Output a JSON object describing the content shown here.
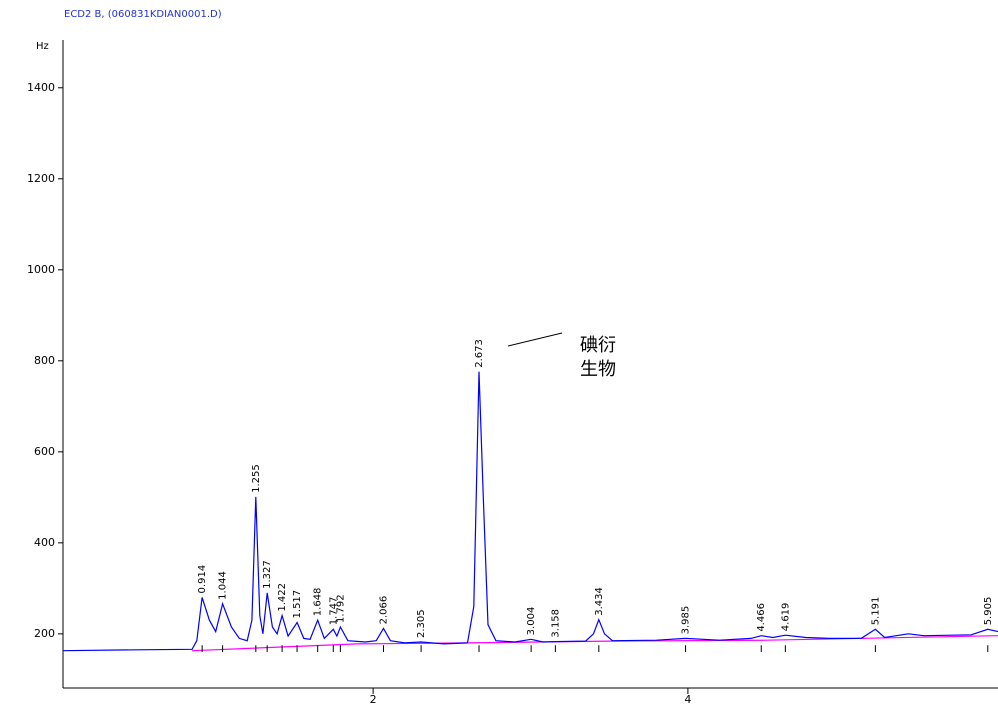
{
  "chart_data": {
    "type": "line",
    "title": "ECD2 B, (060831KDIAN0001.D)",
    "y_unit": "Hz",
    "xlim": [
      0.03,
      5.97
    ],
    "ylim": [
      81,
      1505
    ],
    "xticks": [
      2,
      4
    ],
    "yticks": [
      200,
      400,
      600,
      800,
      1000,
      1200,
      1400
    ],
    "series": [
      {
        "color": "#0000ff",
        "x": [
          0.03,
          0.5,
          0.85,
          0.88,
          0.914,
          0.96,
          1.0,
          1.044,
          1.1,
          1.15,
          1.2,
          1.23,
          1.255,
          1.28,
          1.3,
          1.327,
          1.36,
          1.39,
          1.422,
          1.46,
          1.517,
          1.56,
          1.6,
          1.648,
          1.69,
          1.747,
          1.77,
          1.792,
          1.84,
          1.95,
          2.02,
          2.066,
          2.11,
          2.2,
          2.305,
          2.45,
          2.6,
          2.64,
          2.673,
          2.7,
          2.73,
          2.78,
          2.9,
          3.004,
          3.08,
          3.158,
          3.35,
          3.4,
          3.434,
          3.47,
          3.52,
          3.8,
          3.985,
          4.2,
          4.4,
          4.466,
          4.54,
          4.619,
          4.75,
          4.9,
          5.1,
          5.191,
          5.25,
          5.4,
          5.5,
          5.8,
          5.905,
          5.97
        ],
        "values": [
          163,
          165,
          166,
          185,
          280,
          230,
          205,
          266,
          215,
          190,
          185,
          230,
          501,
          240,
          200,
          290,
          215,
          200,
          240,
          195,
          225,
          190,
          188,
          230,
          190,
          210,
          195,
          215,
          185,
          182,
          185,
          212,
          185,
          180,
          182,
          178,
          180,
          260,
          776,
          500,
          220,
          185,
          182,
          188,
          182,
          183,
          184,
          200,
          231,
          200,
          185,
          186,
          190,
          186,
          190,
          196,
          192,
          197,
          192,
          190,
          190,
          210,
          192,
          200,
          196,
          198,
          210,
          205
        ]
      },
      {
        "color": "#ff00ff",
        "x": [
          0.85,
          1.9,
          2.6,
          3.5,
          4.5,
          5.97
        ],
        "values": [
          163,
          178,
          180,
          184,
          186,
          196
        ]
      }
    ],
    "peaks": {
      "times": [
        0.914,
        1.044,
        1.255,
        1.327,
        1.422,
        1.517,
        1.648,
        1.747,
        1.792,
        2.066,
        2.305,
        2.673,
        3.004,
        3.158,
        3.434,
        3.985,
        4.466,
        4.619,
        5.191,
        5.905
      ],
      "heights": [
        280,
        266,
        501,
        290,
        240,
        225,
        230,
        210,
        215,
        212,
        182,
        776,
        188,
        183,
        231,
        190,
        196,
        197,
        210,
        210
      ]
    },
    "annotation": {
      "lines": [
        "碘衍",
        "生物"
      ]
    }
  }
}
